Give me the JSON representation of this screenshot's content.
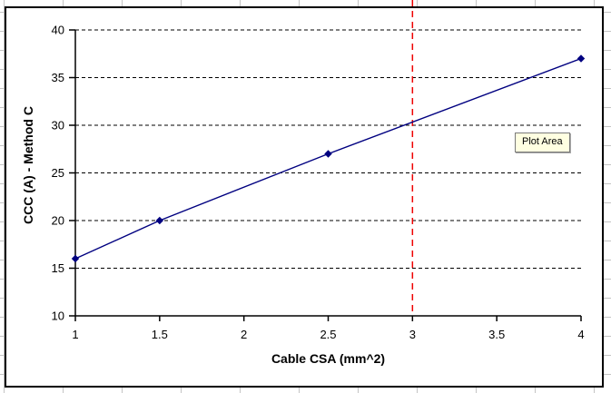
{
  "chart_data": {
    "type": "line",
    "title": "",
    "xlabel": "Cable CSA (mm^2)",
    "ylabel": "CCC (A) - Method C",
    "xlim": [
      1,
      4
    ],
    "ylim": [
      10,
      40
    ],
    "xticks": [
      1,
      1.5,
      2,
      2.5,
      3,
      3.5,
      4
    ],
    "yticks": [
      10,
      15,
      20,
      25,
      30,
      35,
      40
    ],
    "grid": {
      "horizontal": "dashed",
      "vertical": "off",
      "color": "#000000"
    },
    "legend": "none",
    "series": [
      {
        "x": [
          1,
          1.5,
          2.5,
          4
        ],
        "y": [
          16,
          20,
          27,
          37
        ],
        "color": "#000080",
        "marker": "diamond",
        "line_style": "solid"
      }
    ],
    "reference_line": {
      "axis": "x",
      "value": 3,
      "color": "#ee0000",
      "style": "dashed"
    }
  },
  "tooltip": {
    "label": "Plot Area",
    "bg_color": "#ffffe1"
  },
  "spreadsheet": {
    "gridline_color": "#c4c4c4"
  },
  "chart": {
    "background": "#ffffff",
    "border_color": "#000000"
  }
}
